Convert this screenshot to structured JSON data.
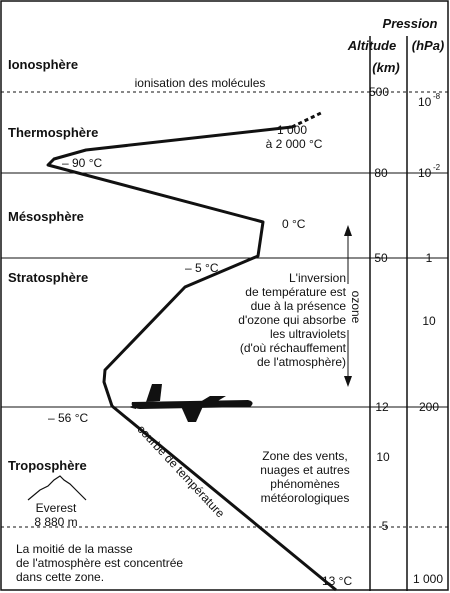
{
  "headers": {
    "altitude": [
      "Altitude",
      "(km)"
    ],
    "pressure": [
      "Pression",
      "(hPa)"
    ]
  },
  "layers": {
    "ionosphere": "Ionosphère",
    "thermosphere": "Thermosphère",
    "mesosphere": "Mésosphère",
    "stratosphere": "Stratosphère",
    "troposphere": "Troposphère"
  },
  "labels": {
    "ionisation": "ionisation des molécules",
    "temp_1000_line1": "1 000",
    "temp_1000_line2": "à 2 000 °C",
    "temp_minus90": "– 90 °C",
    "temp_0": "0 °C",
    "temp_minus5": "– 5 °C",
    "temp_minus56": "– 56 °C",
    "temp_13": "13 °C",
    "ozone": "ozone",
    "courbe": "courbe de température",
    "everest_line1": "Everest",
    "everest_line2": "8 880 m"
  },
  "notes": {
    "ozone_note": [
      "L'inversion",
      "de température est",
      "due à la présence",
      "d'ozone qui absorbe",
      "les ultraviolets",
      "(d'où réchauffement",
      "de l'atmosphère)"
    ],
    "weather_note": [
      "Zone des vents,",
      "nuages et autres",
      "phénomènes",
      "météorologiques"
    ],
    "half_mass_note": [
      "La moitié de la masse",
      "de l'atmosphère est concentrée",
      "dans cette zone."
    ]
  },
  "altitude_ticks": [
    "500",
    "80",
    "50",
    "12",
    "10",
    "5"
  ],
  "pressure_ticks": {
    "p1": {
      "base": "10",
      "exp": "-8"
    },
    "p2": {
      "base": "10",
      "exp": "-2"
    },
    "p3": "1",
    "p4": "10",
    "p5": "200",
    "p6": "1 000"
  },
  "colors": {
    "ink": "#111111",
    "background": "#ffffff"
  }
}
